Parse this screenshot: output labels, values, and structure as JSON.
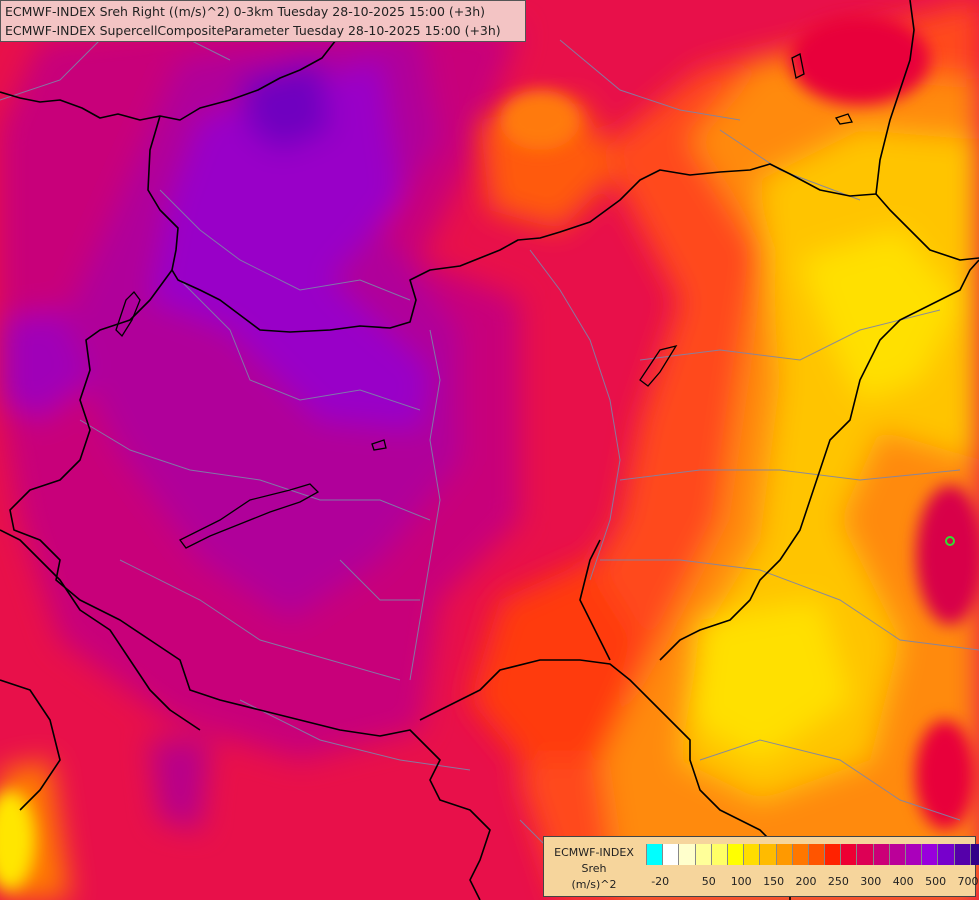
{
  "map": {
    "background_color": "#e8104a",
    "marker_color": "#33dd33"
  },
  "title": {
    "line1": "ECMWF-INDEX Sreh Right ((m/s)^2) 0-3km Tuesday 28-10-2025 15:00 (+3h)",
    "line2": "ECMWF-INDEX SupercellCompositeParameter Tuesday 28-10-2025 15:00 (+3h)"
  },
  "legend": {
    "name": "ECMWF-INDEX",
    "variable": "Sreh",
    "unit": "(m/s)^2",
    "colors": [
      "#00ffff",
      "#ffffff",
      "#ffffcc",
      "#ffff99",
      "#ffff66",
      "#ffff00",
      "#ffdd00",
      "#ffbb00",
      "#ff9900",
      "#ff7700",
      "#ff5500",
      "#ff2200",
      "#ee0033",
      "#dd0055",
      "#cc0077",
      "#bb0099",
      "#aa00bb",
      "#9900dd",
      "#7700cc",
      "#5500aa",
      "#330088"
    ],
    "tick_labels": [
      "-20",
      "50",
      "100",
      "150",
      "200",
      "250",
      "300",
      "400",
      "500",
      "700"
    ]
  }
}
